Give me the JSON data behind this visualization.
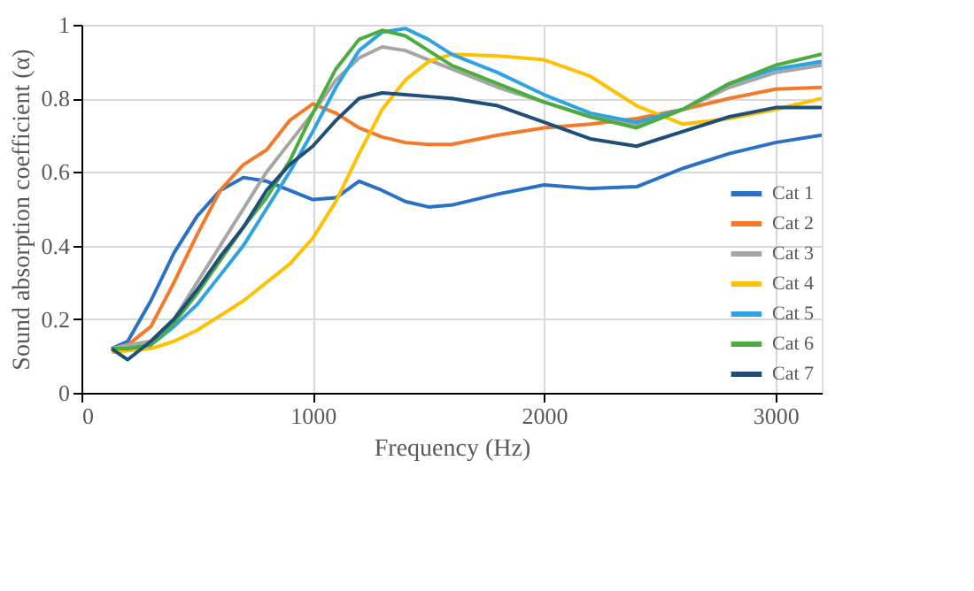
{
  "chart_data": {
    "type": "line",
    "xlabel": "Frequency (Hz)",
    "ylabel": "Sound absorption coefficient (α)",
    "x": [
      130,
      200,
      300,
      400,
      500,
      600,
      700,
      800,
      900,
      1000,
      1100,
      1200,
      1300,
      1400,
      1500,
      1600,
      1800,
      2000,
      2200,
      2400,
      2600,
      2800,
      3000,
      3200
    ],
    "series": [
      {
        "name": "Cat 1",
        "color": "#2a71c6",
        "values": [
          0.12,
          0.14,
          0.25,
          0.38,
          0.48,
          0.55,
          0.585,
          0.575,
          0.55,
          0.525,
          0.53,
          0.575,
          0.55,
          0.52,
          0.505,
          0.51,
          0.54,
          0.565,
          0.555,
          0.56,
          0.61,
          0.65,
          0.68,
          0.7
        ]
      },
      {
        "name": "Cat 2",
        "color": "#f47a2a",
        "values": [
          0.12,
          0.13,
          0.18,
          0.3,
          0.43,
          0.55,
          0.62,
          0.66,
          0.74,
          0.785,
          0.76,
          0.72,
          0.695,
          0.68,
          0.675,
          0.675,
          0.7,
          0.72,
          0.73,
          0.745,
          0.77,
          0.8,
          0.825,
          0.83
        ]
      },
      {
        "name": "Cat 3",
        "color": "#a5a5a5",
        "values": [
          0.12,
          0.13,
          0.14,
          0.2,
          0.3,
          0.4,
          0.5,
          0.6,
          0.68,
          0.76,
          0.85,
          0.91,
          0.94,
          0.93,
          0.905,
          0.88,
          0.83,
          0.79,
          0.75,
          0.73,
          0.77,
          0.83,
          0.87,
          0.89
        ]
      },
      {
        "name": "Cat 4",
        "color": "#ffc000",
        "values": [
          0.11,
          0.115,
          0.12,
          0.14,
          0.17,
          0.21,
          0.25,
          0.3,
          0.35,
          0.42,
          0.52,
          0.65,
          0.77,
          0.85,
          0.9,
          0.92,
          0.915,
          0.905,
          0.86,
          0.78,
          0.73,
          0.745,
          0.77,
          0.8
        ]
      },
      {
        "name": "Cat 5",
        "color": "#2ea3e0",
        "values": [
          0.12,
          0.12,
          0.13,
          0.18,
          0.24,
          0.32,
          0.4,
          0.5,
          0.6,
          0.71,
          0.83,
          0.93,
          0.98,
          0.99,
          0.96,
          0.92,
          0.87,
          0.81,
          0.76,
          0.735,
          0.77,
          0.84,
          0.88,
          0.9
        ]
      },
      {
        "name": "Cat 6",
        "color": "#4cac3c",
        "values": [
          0.12,
          0.12,
          0.13,
          0.19,
          0.27,
          0.36,
          0.45,
          0.53,
          0.63,
          0.76,
          0.88,
          0.96,
          0.985,
          0.97,
          0.93,
          0.89,
          0.84,
          0.79,
          0.75,
          0.72,
          0.77,
          0.84,
          0.89,
          0.92
        ]
      },
      {
        "name": "Cat 7",
        "color": "#1f4e79",
        "values": [
          0.12,
          0.09,
          0.14,
          0.2,
          0.28,
          0.37,
          0.45,
          0.55,
          0.62,
          0.67,
          0.74,
          0.8,
          0.815,
          0.81,
          0.805,
          0.8,
          0.78,
          0.735,
          0.69,
          0.67,
          0.71,
          0.75,
          0.775,
          0.775
        ]
      }
    ],
    "xlim": [
      0,
      3200
    ],
    "xticks": [
      0,
      1000,
      2000,
      3000
    ],
    "ylim": [
      0,
      1
    ],
    "yticks": [
      0,
      0.2,
      0.4,
      0.6,
      0.8,
      1
    ],
    "grid": true,
    "legend": "bottom right",
    "marker": "none",
    "line_style": "solid"
  }
}
